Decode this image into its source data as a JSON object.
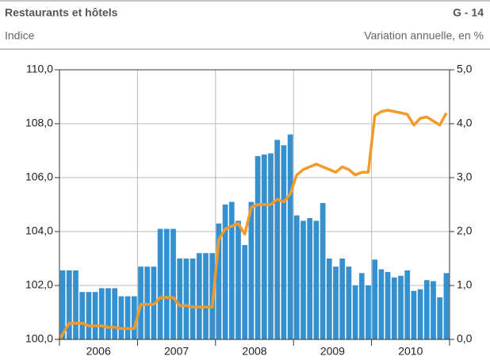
{
  "chart_data": {
    "type": "bar-line",
    "title": "Restaurants et hôtels",
    "code": "G - 14",
    "y_label": "Indice",
    "y2_label": "Variation annuelle, en %",
    "year_labels": [
      "2006",
      "2007",
      "2008",
      "2009",
      "2010"
    ],
    "ylim": [
      100,
      110
    ],
    "yticks": [
      {
        "value": 100,
        "label": "100,0"
      },
      {
        "value": 102,
        "label": "102,0"
      },
      {
        "value": 104,
        "label": "104,0"
      },
      {
        "value": 106,
        "label": "106,0"
      },
      {
        "value": 108,
        "label": "108,0"
      },
      {
        "value": 110,
        "label": "110,0"
      }
    ],
    "y2lim": [
      0,
      5
    ],
    "y2ticks": [
      {
        "value": 0,
        "label": "0,0"
      },
      {
        "value": 1,
        "label": "1,0"
      },
      {
        "value": 2,
        "label": "2,0"
      },
      {
        "value": 3,
        "label": "3,0"
      },
      {
        "value": 4,
        "label": "4,0"
      },
      {
        "value": 5,
        "label": "5,0"
      }
    ],
    "grid": true,
    "series": [
      {
        "kind": "bar",
        "axis": "y2",
        "color": "#3590d0",
        "values": [
          1.28,
          1.28,
          1.28,
          0.88,
          0.88,
          0.88,
          0.95,
          0.95,
          0.95,
          0.8,
          0.8,
          0.8,
          1.35,
          1.35,
          1.35,
          2.05,
          2.05,
          2.05,
          1.5,
          1.5,
          1.5,
          1.6,
          1.6,
          1.6,
          2.15,
          2.5,
          2.55,
          2.2,
          1.75,
          2.55,
          3.4,
          3.43,
          3.45,
          3.7,
          3.6,
          3.8,
          2.3,
          2.2,
          2.25,
          2.2,
          2.53,
          1.5,
          1.35,
          1.5,
          1.35,
          1.0,
          1.23,
          1.0,
          1.48,
          1.3,
          1.25,
          1.15,
          1.18,
          1.28,
          0.9,
          0.93,
          1.1,
          1.08,
          0.78,
          1.23
        ]
      },
      {
        "kind": "line",
        "axis": "y",
        "color": "#f39a2b",
        "values": [
          100.0,
          100.6,
          100.6,
          100.6,
          100.5,
          100.5,
          100.5,
          100.45,
          100.45,
          100.4,
          100.4,
          100.4,
          101.3,
          101.3,
          101.3,
          101.55,
          101.55,
          101.55,
          101.25,
          101.25,
          101.2,
          101.2,
          101.2,
          101.2,
          103.7,
          104.1,
          104.2,
          104.3,
          103.9,
          104.9,
          105.0,
          105.0,
          105.0,
          105.2,
          105.1,
          105.4,
          106.1,
          106.3,
          106.4,
          106.5,
          106.4,
          106.3,
          106.2,
          106.4,
          106.3,
          106.1,
          106.2,
          106.2,
          108.3,
          108.45,
          108.5,
          108.45,
          108.4,
          108.35,
          107.95,
          108.2,
          108.25,
          108.1,
          107.95,
          108.4
        ]
      }
    ]
  }
}
